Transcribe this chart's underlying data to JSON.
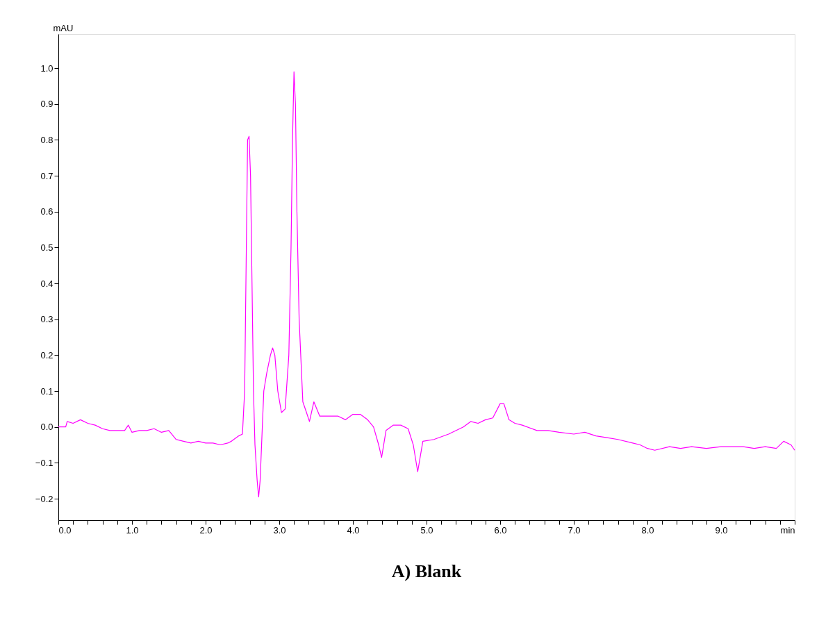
{
  "chart_data": {
    "type": "line",
    "title": "A) Blank",
    "ylabel": "mAU",
    "xlim": [
      0,
      10
    ],
    "ylim": [
      -0.26,
      1.095
    ],
    "grid": false,
    "marker": "none",
    "line_style": "solid",
    "xticks": [
      {
        "value": 0,
        "label": "0.0"
      },
      {
        "value": 0.2,
        "label": null
      },
      {
        "value": 0.4,
        "label": null
      },
      {
        "value": 0.6,
        "label": null
      },
      {
        "value": 0.8,
        "label": null
      },
      {
        "value": 1,
        "label": "1.0"
      },
      {
        "value": 1.2,
        "label": null
      },
      {
        "value": 1.4,
        "label": null
      },
      {
        "value": 1.6,
        "label": null
      },
      {
        "value": 1.8,
        "label": null
      },
      {
        "value": 2,
        "label": "2.0"
      },
      {
        "value": 2.2,
        "label": null
      },
      {
        "value": 2.4,
        "label": null
      },
      {
        "value": 2.6,
        "label": null
      },
      {
        "value": 2.8,
        "label": null
      },
      {
        "value": 3,
        "label": "3.0"
      },
      {
        "value": 3.2,
        "label": null
      },
      {
        "value": 3.4,
        "label": null
      },
      {
        "value": 3.6,
        "label": null
      },
      {
        "value": 3.8,
        "label": null
      },
      {
        "value": 4,
        "label": "4.0"
      },
      {
        "value": 4.2,
        "label": null
      },
      {
        "value": 4.4,
        "label": null
      },
      {
        "value": 4.6,
        "label": null
      },
      {
        "value": 4.8,
        "label": null
      },
      {
        "value": 5,
        "label": "5.0"
      },
      {
        "value": 5.2,
        "label": null
      },
      {
        "value": 5.4,
        "label": null
      },
      {
        "value": 5.6,
        "label": null
      },
      {
        "value": 5.8,
        "label": null
      },
      {
        "value": 6,
        "label": "6.0"
      },
      {
        "value": 6.2,
        "label": null
      },
      {
        "value": 6.4,
        "label": null
      },
      {
        "value": 6.6,
        "label": null
      },
      {
        "value": 6.8,
        "label": null
      },
      {
        "value": 7,
        "label": "7.0"
      },
      {
        "value": 7.2,
        "label": null
      },
      {
        "value": 7.4,
        "label": null
      },
      {
        "value": 7.6,
        "label": null
      },
      {
        "value": 7.8,
        "label": null
      },
      {
        "value": 8,
        "label": "8.0"
      },
      {
        "value": 8.2,
        "label": null
      },
      {
        "value": 8.4,
        "label": null
      },
      {
        "value": 8.6,
        "label": null
      },
      {
        "value": 8.8,
        "label": null
      },
      {
        "value": 9,
        "label": "9.0"
      },
      {
        "value": 9.2,
        "label": null
      },
      {
        "value": 9.4,
        "label": null
      },
      {
        "value": 9.6,
        "label": null
      },
      {
        "value": 9.8,
        "label": null
      },
      {
        "value": 10,
        "label": "min"
      }
    ],
    "yticks": [
      -0.2,
      -0.1,
      {
        "value": 0,
        "label": "0.0"
      },
      0.1,
      0.2,
      0.3,
      0.4,
      0.5,
      0.6,
      0.7,
      0.8,
      0.9,
      {
        "value": 1,
        "label": "1.0"
      }
    ],
    "series": [
      {
        "color": "#ff00ff",
        "x": [
          0,
          0.1,
          0.12,
          0.2,
          0.3,
          0.4,
          0.5,
          0.6,
          0.7,
          0.8,
          0.9,
          0.95,
          1.0,
          1.1,
          1.2,
          1.3,
          1.4,
          1.5,
          1.6,
          1.7,
          1.8,
          1.9,
          2.0,
          2.1,
          2.2,
          2.3,
          2.35,
          2.45,
          2.5,
          2.53,
          2.55,
          2.57,
          2.59,
          2.61,
          2.63,
          2.65,
          2.67,
          2.7,
          2.72,
          2.74,
          2.76,
          2.79,
          2.83,
          2.88,
          2.91,
          2.94,
          2.98,
          3.03,
          3.08,
          3.13,
          3.16,
          3.18,
          3.2,
          3.22,
          3.24,
          3.27,
          3.32,
          3.37,
          3.41,
          3.47,
          3.55,
          3.7,
          3.8,
          3.9,
          4.0,
          4.1,
          4.2,
          4.28,
          4.35,
          4.39,
          4.45,
          4.55,
          4.65,
          4.75,
          4.82,
          4.88,
          4.95,
          5.1,
          5.3,
          5.5,
          5.6,
          5.7,
          5.8,
          5.9,
          6.0,
          6.05,
          6.12,
          6.2,
          6.3,
          6.5,
          6.65,
          6.8,
          7.0,
          7.15,
          7.3,
          7.45,
          7.6,
          7.8,
          7.9,
          8.0,
          8.1,
          8.3,
          8.45,
          8.6,
          8.8,
          9.0,
          9.15,
          9.3,
          9.45,
          9.6,
          9.75,
          9.85,
          9.95,
          10.0
        ],
        "values": [
          0,
          0,
          0.015,
          0.01,
          0.02,
          0.01,
          0.005,
          -0.005,
          -0.01,
          -0.01,
          -0.01,
          0.005,
          -0.015,
          -0.01,
          -0.01,
          -0.005,
          -0.015,
          -0.01,
          -0.035,
          -0.04,
          -0.045,
          -0.04,
          -0.045,
          -0.045,
          -0.05,
          -0.045,
          -0.04,
          -0.025,
          -0.02,
          0.1,
          0.45,
          0.8,
          0.81,
          0.7,
          0.4,
          0.1,
          -0.05,
          -0.15,
          -0.195,
          -0.15,
          -0.05,
          0.1,
          0.15,
          0.2,
          0.22,
          0.2,
          0.1,
          0.04,
          0.05,
          0.2,
          0.5,
          0.8,
          0.99,
          0.9,
          0.6,
          0.3,
          0.07,
          0.04,
          0.015,
          0.07,
          0.03,
          0.03,
          0.03,
          0.02,
          0.035,
          0.035,
          0.02,
          0.0,
          -0.05,
          -0.085,
          -0.01,
          0.005,
          0.005,
          -0.005,
          -0.05,
          -0.125,
          -0.04,
          -0.035,
          -0.02,
          0.0,
          0.015,
          0.01,
          0.02,
          0.025,
          0.065,
          0.065,
          0.02,
          0.01,
          0.005,
          -0.01,
          -0.01,
          -0.015,
          -0.02,
          -0.015,
          -0.025,
          -0.03,
          -0.035,
          -0.045,
          -0.05,
          -0.06,
          -0.065,
          -0.055,
          -0.06,
          -0.055,
          -0.06,
          -0.055,
          -0.055,
          -0.055,
          -0.06,
          -0.055,
          -0.06,
          -0.04,
          -0.05,
          -0.065
        ]
      }
    ]
  }
}
